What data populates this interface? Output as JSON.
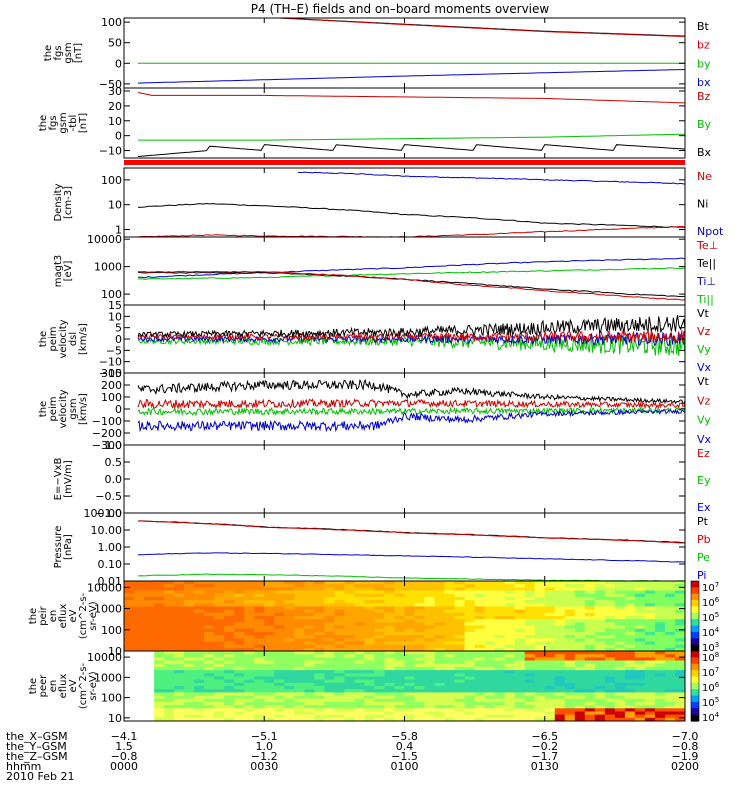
{
  "title": "P4 (TH–E) fields and on–board moments overview",
  "colors": {
    "black": "#000000",
    "red": "#cc0000",
    "green": "#00c000",
    "blue": "#0000cc"
  },
  "chart_data": [
    {
      "type": "line",
      "ylabel": [
        "the",
        "fgs",
        "gsm",
        "[nT]"
      ],
      "ylim": [
        -60,
        110
      ],
      "ticks": [
        {
          "v": 100,
          "label": "100"
        },
        {
          "v": 50,
          "label": "50"
        },
        {
          "v": 0,
          "label": "0"
        },
        {
          "v": -50,
          "label": "−50"
        }
      ],
      "legend": [
        {
          "text": "Bt",
          "color": "#000000"
        },
        {
          "text": "bz",
          "color": "#cc0000"
        },
        {
          "text": "by",
          "color": "#00c000"
        },
        {
          "text": "bx",
          "color": "#0000cc"
        }
      ],
      "series": [
        {
          "color": "#000000",
          "x": [
            0.5,
            1.0,
            1.5,
            2.0
          ],
          "y": [
            112,
            95,
            78,
            66
          ]
        },
        {
          "color": "#cc0000",
          "x": [
            0.55,
            1.0,
            1.5,
            2.0
          ],
          "y": [
            110,
            94,
            77,
            65
          ]
        },
        {
          "color": "#00c000",
          "x": [
            0.05,
            1.0,
            2.0
          ],
          "y": [
            0,
            0,
            0
          ]
        },
        {
          "color": "#0000cc",
          "x": [
            0.05,
            0.5,
            1.0,
            1.5,
            2.0
          ],
          "y": [
            -48,
            -40,
            -31,
            -23,
            -15
          ]
        }
      ]
    },
    {
      "type": "line",
      "ylabel": [
        "the",
        "fgs",
        "gsm",
        "-tbl",
        "[nT]"
      ],
      "ylim": [
        -15,
        32
      ],
      "ticks": [
        {
          "v": 30,
          "label": "30"
        },
        {
          "v": 20,
          "label": "20"
        },
        {
          "v": 10,
          "label": "10"
        },
        {
          "v": 0,
          "label": "0"
        },
        {
          "v": -10,
          "label": "−10"
        }
      ],
      "legend": [
        {
          "text": "Bz",
          "color": "#cc0000"
        },
        {
          "text": "By",
          "color": "#00c000"
        },
        {
          "text": "Bx",
          "color": "#000000"
        }
      ],
      "series": [
        {
          "color": "#cc0000",
          "x": [
            0.05,
            0.1,
            0.5,
            1.0,
            1.5,
            2.0
          ],
          "y": [
            29,
            27,
            27,
            26,
            25,
            22
          ]
        },
        {
          "color": "#00c000",
          "x": [
            0.05,
            0.5,
            1.0,
            1.5,
            2.0
          ],
          "y": [
            -3,
            -3,
            -2,
            -1,
            1
          ]
        },
        {
          "color": "#000000",
          "x": [
            0.05,
            0.3,
            0.3,
            0.5,
            0.5,
            0.75,
            0.75,
            1.0,
            1.0,
            1.25,
            1.25,
            1.5,
            1.5,
            1.75,
            1.75,
            2.0
          ],
          "y": [
            -14,
            -10,
            -7,
            -10,
            -6,
            -10,
            -6,
            -10,
            -6,
            -10,
            -6,
            -10,
            -6,
            -10,
            -6,
            -9
          ]
        }
      ],
      "flag_bar_color": "#ff0000"
    },
    {
      "type": "line",
      "scale": "log",
      "ylabel": [
        "Density",
        "[cm-3]"
      ],
      "ylim": [
        0.5,
        300
      ],
      "ticks": [
        {
          "v": 100,
          "label": "100"
        },
        {
          "v": 10,
          "label": "10"
        },
        {
          "v": 1,
          "label": "1"
        }
      ],
      "legend": [
        {
          "text": "Ne",
          "color": "#cc0000"
        },
        {
          "text": "Ni",
          "color": "#000000"
        },
        {
          "text": "Npot",
          "color": "#0000cc"
        }
      ],
      "series": [
        {
          "color": "#0000cc",
          "x": [
            0.62,
            0.8,
            1.0,
            1.5,
            2.0
          ],
          "y": [
            200,
            180,
            140,
            100,
            70
          ]
        },
        {
          "color": "#000000",
          "x": [
            0.05,
            0.3,
            0.5,
            1.0,
            1.5,
            2.0
          ],
          "y": [
            8,
            11,
            9,
            4,
            1.8,
            1.2
          ]
        },
        {
          "color": "#cc0000",
          "x": [
            0.05,
            0.3,
            0.5,
            1.0,
            1.3,
            1.6,
            2.0
          ],
          "y": [
            0.5,
            0.6,
            0.55,
            0.5,
            0.65,
            0.9,
            1.3
          ]
        }
      ]
    },
    {
      "type": "line",
      "scale": "log",
      "ylabel": [
        "magt3",
        "[eV]"
      ],
      "ylim": [
        40,
        12000
      ],
      "ticks": [
        {
          "v": 10000,
          "label": "10000"
        },
        {
          "v": 1000,
          "label": "1000"
        },
        {
          "v": 100,
          "label": "100"
        }
      ],
      "legend": [
        {
          "text": "Te⊥",
          "color": "#cc0000"
        },
        {
          "text": "Te||",
          "color": "#000000"
        },
        {
          "text": "Ti⊥",
          "color": "#0000cc"
        },
        {
          "text": "Ti||",
          "color": "#00c000"
        }
      ],
      "series": [
        {
          "color": "#0000cc",
          "x": [
            0.05,
            0.5,
            1.0,
            1.5,
            2.0
          ],
          "y": [
            400,
            600,
            900,
            1500,
            2000
          ]
        },
        {
          "color": "#00c000",
          "x": [
            0.05,
            0.5,
            1.0,
            1.5,
            2.0
          ],
          "y": [
            350,
            400,
            550,
            700,
            900
          ]
        },
        {
          "color": "#000000",
          "x": [
            0.05,
            0.5,
            0.9,
            1.2,
            1.5,
            1.8,
            2.0
          ],
          "y": [
            600,
            600,
            400,
            250,
            150,
            100,
            80
          ]
        },
        {
          "color": "#cc0000",
          "x": [
            0.05,
            0.5,
            0.9,
            1.2,
            1.5,
            1.8,
            2.0
          ],
          "y": [
            650,
            650,
            400,
            220,
            130,
            80,
            60
          ]
        }
      ]
    },
    {
      "type": "line",
      "ylabel": [
        "the",
        "peim",
        "velocity",
        "dsl",
        "[km/s]"
      ],
      "ylim": [
        -15,
        15
      ],
      "ticks": [
        {
          "v": 15,
          "label": "15"
        },
        {
          "v": 10,
          "label": "10"
        },
        {
          "v": 5,
          "label": "5"
        },
        {
          "v": 0,
          "label": "0"
        },
        {
          "v": -5,
          "label": "−5"
        },
        {
          "v": -10,
          "label": "−10"
        },
        {
          "v": -15,
          "label": "−15"
        }
      ],
      "legend": [
        {
          "text": "Vt",
          "color": "#000000"
        },
        {
          "text": "Vz",
          "color": "#cc0000"
        },
        {
          "text": "Vy",
          "color": "#00c000"
        },
        {
          "text": "Vx",
          "color": "#0000cc"
        }
      ],
      "series": [
        {
          "color": "#00c000",
          "x": [
            0.05,
            1.0,
            2.0
          ],
          "y": [
            -1,
            -1,
            -3
          ],
          "noise": [
            1,
            2,
            5
          ]
        },
        {
          "color": "#0000cc",
          "x": [
            0.05,
            1.0,
            2.0
          ],
          "y": [
            0,
            0,
            0
          ],
          "noise": [
            1,
            1.5,
            3
          ]
        },
        {
          "color": "#cc0000",
          "x": [
            0.05,
            1.0,
            2.0
          ],
          "y": [
            1,
            1,
            1
          ],
          "noise": [
            1,
            1.5,
            3
          ]
        },
        {
          "color": "#000000",
          "x": [
            0.05,
            1.0,
            2.0
          ],
          "y": [
            2,
            3,
            7
          ],
          "noise": [
            1,
            2,
            4
          ]
        }
      ]
    },
    {
      "type": "line",
      "ylabel": [
        "the",
        "peim",
        "velocity",
        "gsm",
        "[km/s]"
      ],
      "ylim": [
        -300,
        300
      ],
      "ticks": [
        {
          "v": 300,
          "label": "300"
        },
        {
          "v": 200,
          "label": "200"
        },
        {
          "v": 100,
          "label": "100"
        },
        {
          "v": 0,
          "label": "0"
        },
        {
          "v": -100,
          "label": "−100"
        },
        {
          "v": -200,
          "label": "−200"
        },
        {
          "v": -300,
          "label": "−300"
        }
      ],
      "legend": [
        {
          "text": "Vt",
          "color": "#000000"
        },
        {
          "text": "Vz",
          "color": "#cc0000"
        },
        {
          "text": "Vy",
          "color": "#00c000"
        },
        {
          "text": "Vx",
          "color": "#0000cc"
        }
      ],
      "series": [
        {
          "color": "#000000",
          "x": [
            0.05,
            0.5,
            0.9,
            1.0,
            1.2,
            1.5,
            2.0
          ],
          "y": [
            160,
            200,
            200,
            120,
            150,
            100,
            60
          ],
          "noise": [
            40,
            40,
            40,
            30,
            30,
            20,
            15
          ]
        },
        {
          "color": "#cc0000",
          "x": [
            0.05,
            1.0,
            2.0
          ],
          "y": [
            40,
            50,
            30
          ],
          "noise": [
            40,
            30,
            20
          ]
        },
        {
          "color": "#00c000",
          "x": [
            0.05,
            1.0,
            2.0
          ],
          "y": [
            -20,
            -20,
            -10
          ],
          "noise": [
            30,
            25,
            20
          ]
        },
        {
          "color": "#0000cc",
          "x": [
            0.05,
            0.5,
            0.9,
            1.0,
            1.2,
            1.5,
            2.0
          ],
          "y": [
            -140,
            -140,
            -140,
            -60,
            -90,
            -40,
            -20
          ],
          "noise": [
            40,
            40,
            40,
            30,
            30,
            20,
            15
          ]
        }
      ]
    },
    {
      "type": "line",
      "ylabel": [
        "E=−VxB",
        "[mV/m]"
      ],
      "ylim": [
        -1,
        1
      ],
      "ticks": [
        {
          "v": 1,
          "label": "1.0"
        },
        {
          "v": 0.5,
          "label": "0.5"
        },
        {
          "v": 0,
          "label": "0.0"
        },
        {
          "v": -0.5,
          "label": "−0.5"
        },
        {
          "v": -1,
          "label": "−1.0"
        }
      ],
      "legend": [
        {
          "text": "Ez",
          "color": "#cc0000"
        },
        {
          "text": "Ey",
          "color": "#00c000"
        },
        {
          "text": "Ex",
          "color": "#0000cc"
        }
      ],
      "series": []
    },
    {
      "type": "line",
      "scale": "log",
      "ylabel": [
        "Pressure",
        "[nPa]"
      ],
      "ylim": [
        0.01,
        100
      ],
      "ticks": [
        {
          "v": 100,
          "label": "100.00"
        },
        {
          "v": 10,
          "label": "10.00"
        },
        {
          "v": 1,
          "label": "1.00"
        },
        {
          "v": 0.1,
          "label": "0.10"
        },
        {
          "v": 0.01,
          "label": "0.01"
        }
      ],
      "legend": [
        {
          "text": "Pt",
          "color": "#000000"
        },
        {
          "text": "Pb",
          "color": "#cc0000"
        },
        {
          "text": "Pe",
          "color": "#00c000"
        },
        {
          "text": "Pi",
          "color": "#0000cc"
        }
      ],
      "series": [
        {
          "color": "#000000",
          "x": [
            0.05,
            0.5,
            1.0,
            1.5,
            2.0
          ],
          "y": [
            35,
            15,
            7,
            3.5,
            1.8
          ]
        },
        {
          "color": "#cc0000",
          "x": [
            0.05,
            0.5,
            1.0,
            1.5,
            2.0
          ],
          "y": [
            34,
            14.5,
            6.8,
            3.4,
            1.7
          ]
        },
        {
          "color": "#0000cc",
          "x": [
            0.05,
            0.3,
            0.6,
            1.0,
            1.5,
            2.0
          ],
          "y": [
            0.35,
            0.45,
            0.4,
            0.3,
            0.2,
            0.13
          ]
        },
        {
          "color": "#00c000",
          "x": [
            0.05,
            0.3,
            0.6,
            1.0,
            1.5,
            2.0
          ],
          "y": [
            0.02,
            0.025,
            0.022,
            0.015,
            0.011,
            0.01
          ]
        }
      ]
    },
    {
      "type": "heatmap",
      "ylabel": [
        "the",
        "peir",
        "en",
        "eflux",
        "eV",
        "(cm^2-s-",
        "sr-eV)"
      ],
      "ylim": [
        10,
        20000
      ],
      "ticks": [
        {
          "v": 10000,
          "label": "10000"
        },
        {
          "v": 1000,
          "label": "1000"
        },
        {
          "v": 100,
          "label": "100"
        },
        {
          "v": 10,
          "label": "10"
        }
      ],
      "colorbar_ticks": [
        "10^7",
        "10^6",
        "10^5",
        "10^4",
        "10^3"
      ],
      "colorbar_labels": [
        {
          "base": "10",
          "exp": "7"
        },
        {
          "base": "10",
          "exp": "6"
        },
        {
          "base": "10",
          "exp": "5"
        },
        {
          "base": "10",
          "exp": "4"
        },
        {
          "base": "10",
          "exp": "3"
        }
      ]
    },
    {
      "type": "heatmap",
      "ylabel": [
        "the",
        "peer",
        "en",
        "eflux",
        "eV",
        "(cm^2-s-",
        "sr-eV)"
      ],
      "ylim": [
        7,
        20000
      ],
      "ticks": [
        {
          "v": 10000,
          "label": "10000"
        },
        {
          "v": 1000,
          "label": "1000"
        },
        {
          "v": 100,
          "label": "100"
        },
        {
          "v": 10,
          "label": "10"
        }
      ],
      "colorbar_labels": [
        {
          "base": "10",
          "exp": "8"
        },
        {
          "base": "10",
          "exp": "7"
        },
        {
          "base": "10",
          "exp": "6"
        },
        {
          "base": "10",
          "exp": "5"
        },
        {
          "base": "10",
          "exp": "4"
        }
      ]
    }
  ],
  "time_axis": {
    "xlim": [
      0,
      2
    ],
    "ticks": [
      0,
      0.5,
      1.0,
      1.5,
      2.0
    ],
    "row_labels": [
      "the_X–GSM",
      "the_Y–GSM",
      "the_Z–GSM",
      "hhmm",
      "2010 Feb 21"
    ],
    "rows": [
      [
        "−4.1",
        "−5.1",
        "−5.8",
        "−6.5",
        "−7.0"
      ],
      [
        "1.5",
        "1.0",
        "0.4",
        "−0.2",
        "−0.8"
      ],
      [
        "−0.8",
        "−1.2",
        "−1.5",
        "−1.7",
        "−1.9"
      ],
      [
        "0000",
        "0030",
        "0100",
        "0130",
        "0200"
      ]
    ]
  }
}
